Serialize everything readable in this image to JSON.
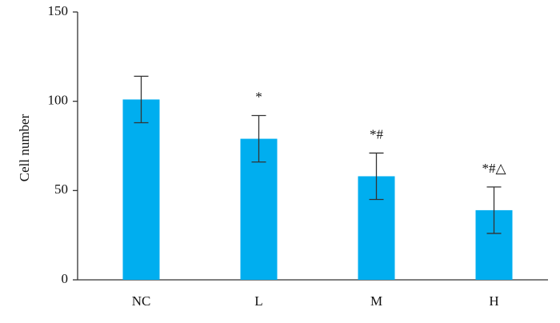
{
  "chart_data": {
    "type": "bar",
    "y_label": "Cell number",
    "categories": [
      "NC",
      "L",
      "M",
      "H"
    ],
    "values": [
      101,
      79,
      58,
      39
    ],
    "errors": [
      13,
      13,
      13,
      13
    ],
    "annotations": [
      null,
      "*",
      "*#",
      "*#△"
    ],
    "color": "#00aeef",
    "ylim": [
      0,
      150
    ],
    "yticks": [
      0,
      50,
      100,
      150
    ],
    "grid": false
  }
}
